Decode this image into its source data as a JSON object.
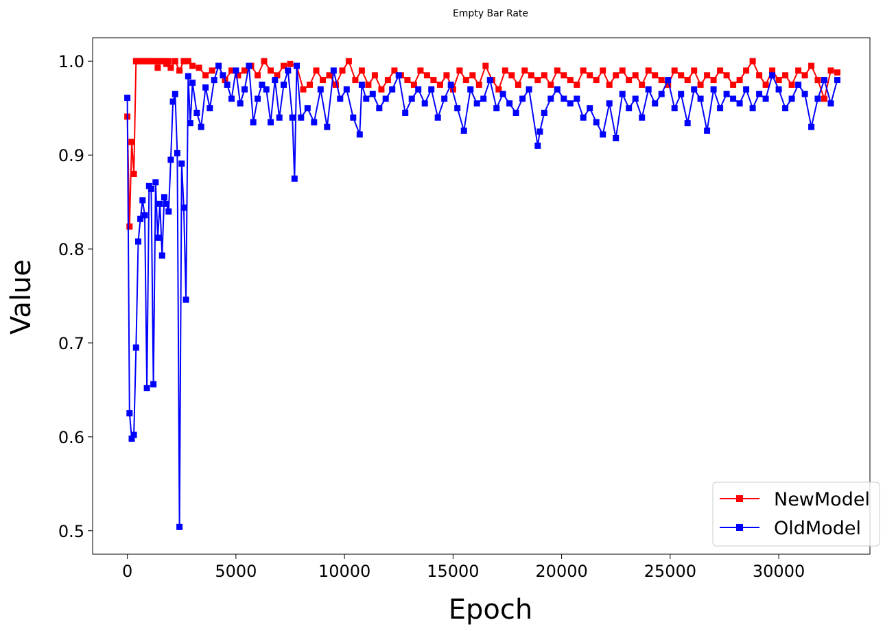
{
  "chart_data": {
    "type": "line",
    "title": "Empty Bar Rate",
    "xlabel": "Epoch",
    "ylabel": "Value",
    "xlim": [
      -1600,
      34200
    ],
    "ylim": [
      0.475,
      1.025
    ],
    "xticks": [
      0,
      5000,
      10000,
      15000,
      20000,
      25000,
      30000
    ],
    "yticks": [
      0.5,
      0.6,
      0.7,
      0.8,
      0.9,
      1.0
    ],
    "ytick_labels": [
      "0.5",
      "0.6",
      "0.7",
      "0.8",
      "0.9",
      "1.0"
    ],
    "grid": false,
    "legend": "lower-right",
    "marker": "square",
    "series": [
      {
        "name": "NewModel",
        "color": "#ff0000",
        "x": [
          0,
          100,
          200,
          300,
          400,
          500,
          600,
          700,
          800,
          900,
          1000,
          1100,
          1200,
          1300,
          1400,
          1500,
          1600,
          1700,
          1800,
          1900,
          2000,
          2200,
          2400,
          2600,
          2800,
          3000,
          3300,
          3600,
          3900,
          4200,
          4500,
          4800,
          5100,
          5400,
          5700,
          6000,
          6300,
          6600,
          6900,
          7200,
          7500,
          7800,
          8100,
          8400,
          8700,
          9000,
          9300,
          9600,
          9900,
          10200,
          10500,
          10800,
          11100,
          11400,
          11700,
          12000,
          12300,
          12600,
          12900,
          13200,
          13500,
          13800,
          14100,
          14400,
          14700,
          15000,
          15300,
          15600,
          15900,
          16200,
          16500,
          16800,
          17100,
          17400,
          17700,
          18000,
          18300,
          18600,
          18900,
          19200,
          19500,
          19800,
          20100,
          20400,
          20700,
          21000,
          21300,
          21600,
          21900,
          22200,
          22500,
          22800,
          23100,
          23400,
          23700,
          24000,
          24300,
          24600,
          24900,
          25200,
          25500,
          25800,
          26100,
          26400,
          26700,
          27000,
          27300,
          27600,
          27900,
          28200,
          28500,
          28800,
          29100,
          29400,
          29700,
          30000,
          30300,
          30600,
          30900,
          31200,
          31500,
          31800,
          32100,
          32400,
          32700
        ],
        "y": [
          0.941,
          0.824,
          0.914,
          0.88,
          1.0,
          1.0,
          1.0,
          1.0,
          1.0,
          1.0,
          1.0,
          1.0,
          1.0,
          1.0,
          0.993,
          1.0,
          1.0,
          1.0,
          0.997,
          1.0,
          0.993,
          1.0,
          0.99,
          1.0,
          1.0,
          0.995,
          0.993,
          0.985,
          0.99,
          0.995,
          0.98,
          0.99,
          0.985,
          0.99,
          0.995,
          0.985,
          1.0,
          0.99,
          0.985,
          0.995,
          0.997,
          0.995,
          0.97,
          0.975,
          0.99,
          0.98,
          0.985,
          0.975,
          0.99,
          1.0,
          0.98,
          0.99,
          0.975,
          0.985,
          0.97,
          0.98,
          0.99,
          0.985,
          0.98,
          0.975,
          0.99,
          0.985,
          0.98,
          0.975,
          0.985,
          0.97,
          0.99,
          0.98,
          0.985,
          0.975,
          0.995,
          0.98,
          0.97,
          0.99,
          0.985,
          0.975,
          0.99,
          0.985,
          0.98,
          0.985,
          0.975,
          0.99,
          0.985,
          0.98,
          0.975,
          0.99,
          0.985,
          0.98,
          0.99,
          0.975,
          0.985,
          0.99,
          0.98,
          0.985,
          0.975,
          0.99,
          0.985,
          0.98,
          0.975,
          0.99,
          0.985,
          0.98,
          0.99,
          0.975,
          0.985,
          0.98,
          0.99,
          0.985,
          0.975,
          0.98,
          0.99,
          1.0,
          0.985,
          0.975,
          0.99,
          0.98,
          0.985,
          0.975,
          0.99,
          0.985,
          0.995,
          0.98,
          0.96,
          0.99,
          0.988
        ]
      },
      {
        "name": "OldModel",
        "color": "#0000ff",
        "x": [
          0,
          100,
          200,
          300,
          400,
          500,
          600,
          700,
          800,
          900,
          1000,
          1100,
          1200,
          1300,
          1400,
          1500,
          1600,
          1700,
          1800,
          1900,
          2000,
          2100,
          2200,
          2300,
          2400,
          2500,
          2600,
          2700,
          2800,
          2900,
          3000,
          3200,
          3400,
          3600,
          3800,
          4000,
          4200,
          4400,
          4600,
          4800,
          5000,
          5200,
          5400,
          5600,
          5800,
          6000,
          6200,
          6400,
          6600,
          6800,
          7000,
          7200,
          7400,
          7600,
          7700,
          7800,
          8000,
          8300,
          8600,
          8900,
          9200,
          9500,
          9800,
          10100,
          10400,
          10700,
          10800,
          11000,
          11300,
          11600,
          11900,
          12200,
          12500,
          12800,
          13100,
          13400,
          13700,
          14000,
          14300,
          14600,
          14900,
          15200,
          15500,
          15800,
          16100,
          16400,
          16700,
          17000,
          17300,
          17600,
          17900,
          18200,
          18500,
          18900,
          19000,
          19200,
          19500,
          19800,
          20100,
          20400,
          20700,
          21000,
          21300,
          21600,
          21900,
          22200,
          22500,
          22800,
          23100,
          23400,
          23700,
          24000,
          24300,
          24600,
          24900,
          25200,
          25500,
          25800,
          26100,
          26400,
          26700,
          27000,
          27300,
          27600,
          27900,
          28200,
          28500,
          28800,
          29100,
          29400,
          29700,
          30000,
          30300,
          30600,
          30900,
          31200,
          31500,
          31800,
          32100,
          32400,
          32700
        ],
        "y": [
          0.961,
          0.625,
          0.598,
          0.602,
          0.695,
          0.808,
          0.832,
          0.852,
          0.836,
          0.652,
          0.867,
          0.864,
          0.656,
          0.871,
          0.812,
          0.848,
          0.793,
          0.855,
          0.848,
          0.84,
          0.895,
          0.957,
          0.965,
          0.902,
          0.504,
          0.891,
          0.844,
          0.746,
          0.984,
          0.934,
          0.977,
          0.945,
          0.93,
          0.972,
          0.95,
          0.98,
          0.995,
          0.985,
          0.975,
          0.96,
          0.99,
          0.955,
          0.97,
          0.995,
          0.935,
          0.96,
          0.975,
          0.97,
          0.935,
          0.98,
          0.94,
          0.975,
          0.99,
          0.94,
          0.875,
          0.995,
          0.94,
          0.95,
          0.935,
          0.97,
          0.93,
          0.99,
          0.96,
          0.97,
          0.94,
          0.922,
          0.975,
          0.96,
          0.965,
          0.95,
          0.96,
          0.97,
          0.985,
          0.945,
          0.96,
          0.97,
          0.955,
          0.97,
          0.94,
          0.96,
          0.975,
          0.95,
          0.926,
          0.97,
          0.955,
          0.96,
          0.98,
          0.95,
          0.965,
          0.955,
          0.945,
          0.96,
          0.97,
          0.91,
          0.925,
          0.945,
          0.96,
          0.97,
          0.96,
          0.955,
          0.96,
          0.94,
          0.95,
          0.935,
          0.922,
          0.955,
          0.918,
          0.965,
          0.95,
          0.96,
          0.94,
          0.97,
          0.955,
          0.965,
          0.98,
          0.95,
          0.965,
          0.934,
          0.97,
          0.96,
          0.926,
          0.97,
          0.95,
          0.965,
          0.96,
          0.955,
          0.97,
          0.95,
          0.965,
          0.96,
          0.985,
          0.97,
          0.95,
          0.96,
          0.975,
          0.965,
          0.93,
          0.96,
          0.98,
          0.955,
          0.98
        ]
      }
    ]
  }
}
